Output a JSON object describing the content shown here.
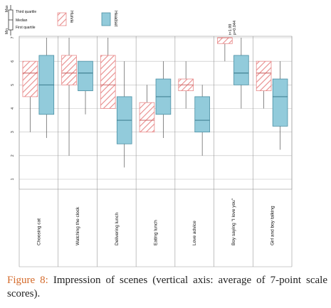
{
  "chart_data": {
    "type": "boxplot",
    "y_axis": {
      "min": 1,
      "max": 7,
      "ticks": [
        "1",
        "2",
        "3",
        "4",
        "5",
        "6",
        "7"
      ]
    },
    "legend": {
      "stat_labels": [
        "Max",
        "Third quartile",
        "Median",
        "First quartile",
        "Min"
      ],
      "series_names": [
        "Hurvie",
        "Headset"
      ]
    },
    "series": [
      {
        "name": "Hurvie",
        "pattern": "hatched",
        "color": "#e88a8a"
      },
      {
        "name": "Headset",
        "pattern": "solid",
        "color": "#92cbdb"
      }
    ],
    "categories": [
      "Choosing cat",
      "Watching the clock",
      "Delivering lunch",
      "Eating lunch",
      "Love advice",
      "Boy saying \"I love you\"",
      "Girl and boy talking"
    ],
    "boxes": [
      [
        {
          "min": 3.0,
          "q1": 4.5,
          "median": 5.5,
          "q3": 6.0,
          "max": 6.0
        },
        {
          "min": 2.75,
          "q1": 3.75,
          "median": 5.0,
          "q3": 6.25,
          "max": 7.0
        }
      ],
      [
        {
          "min": 2.0,
          "q1": 5.0,
          "median": 5.5,
          "q3": 6.25,
          "max": 7.0
        },
        {
          "min": 3.75,
          "q1": 4.75,
          "median": 5.5,
          "q3": 6.0,
          "max": 6.0
        }
      ],
      [
        {
          "min": 4.0,
          "q1": 4.0,
          "median": 5.0,
          "q3": 6.25,
          "max": 7.0
        },
        {
          "min": 1.5,
          "q1": 2.5,
          "median": 3.5,
          "q3": 4.5,
          "max": 6.0
        }
      ],
      [
        {
          "min": 3.0,
          "q1": 3.0,
          "median": 3.5,
          "q3": 4.25,
          "max": 5.0
        },
        {
          "min": 2.75,
          "q1": 3.75,
          "median": 4.5,
          "q3": 5.25,
          "max": 6.0
        }
      ],
      [
        {
          "min": 4.0,
          "q1": 4.75,
          "median": 5.0,
          "q3": 5.25,
          "max": 6.0
        },
        {
          "min": 2.0,
          "q1": 3.0,
          "median": 3.5,
          "q3": 4.5,
          "max": 5.0
        }
      ],
      [
        {
          "min": 6.0,
          "q1": 6.75,
          "median": 7.0,
          "q3": 7.0,
          "max": 7.0
        },
        {
          "min": 4.0,
          "q1": 5.0,
          "median": 5.5,
          "q3": 6.25,
          "max": 7.0
        }
      ],
      [
        {
          "min": 4.0,
          "q1": 4.75,
          "median": 5.5,
          "q3": 6.0,
          "max": 6.0
        },
        {
          "min": 2.25,
          "q1": 3.25,
          "median": 4.5,
          "q3": 5.25,
          "max": 6.0
        }
      ]
    ],
    "annotation": {
      "category": "Boy saying \"I love you\"",
      "lines": [
        "t=1.99",
        "p=0.044"
      ]
    },
    "grid": true
  },
  "caption": {
    "label": "Figure 8:",
    "text": " Impression of scenes (vertical axis: average of 7-point scale scores)."
  }
}
